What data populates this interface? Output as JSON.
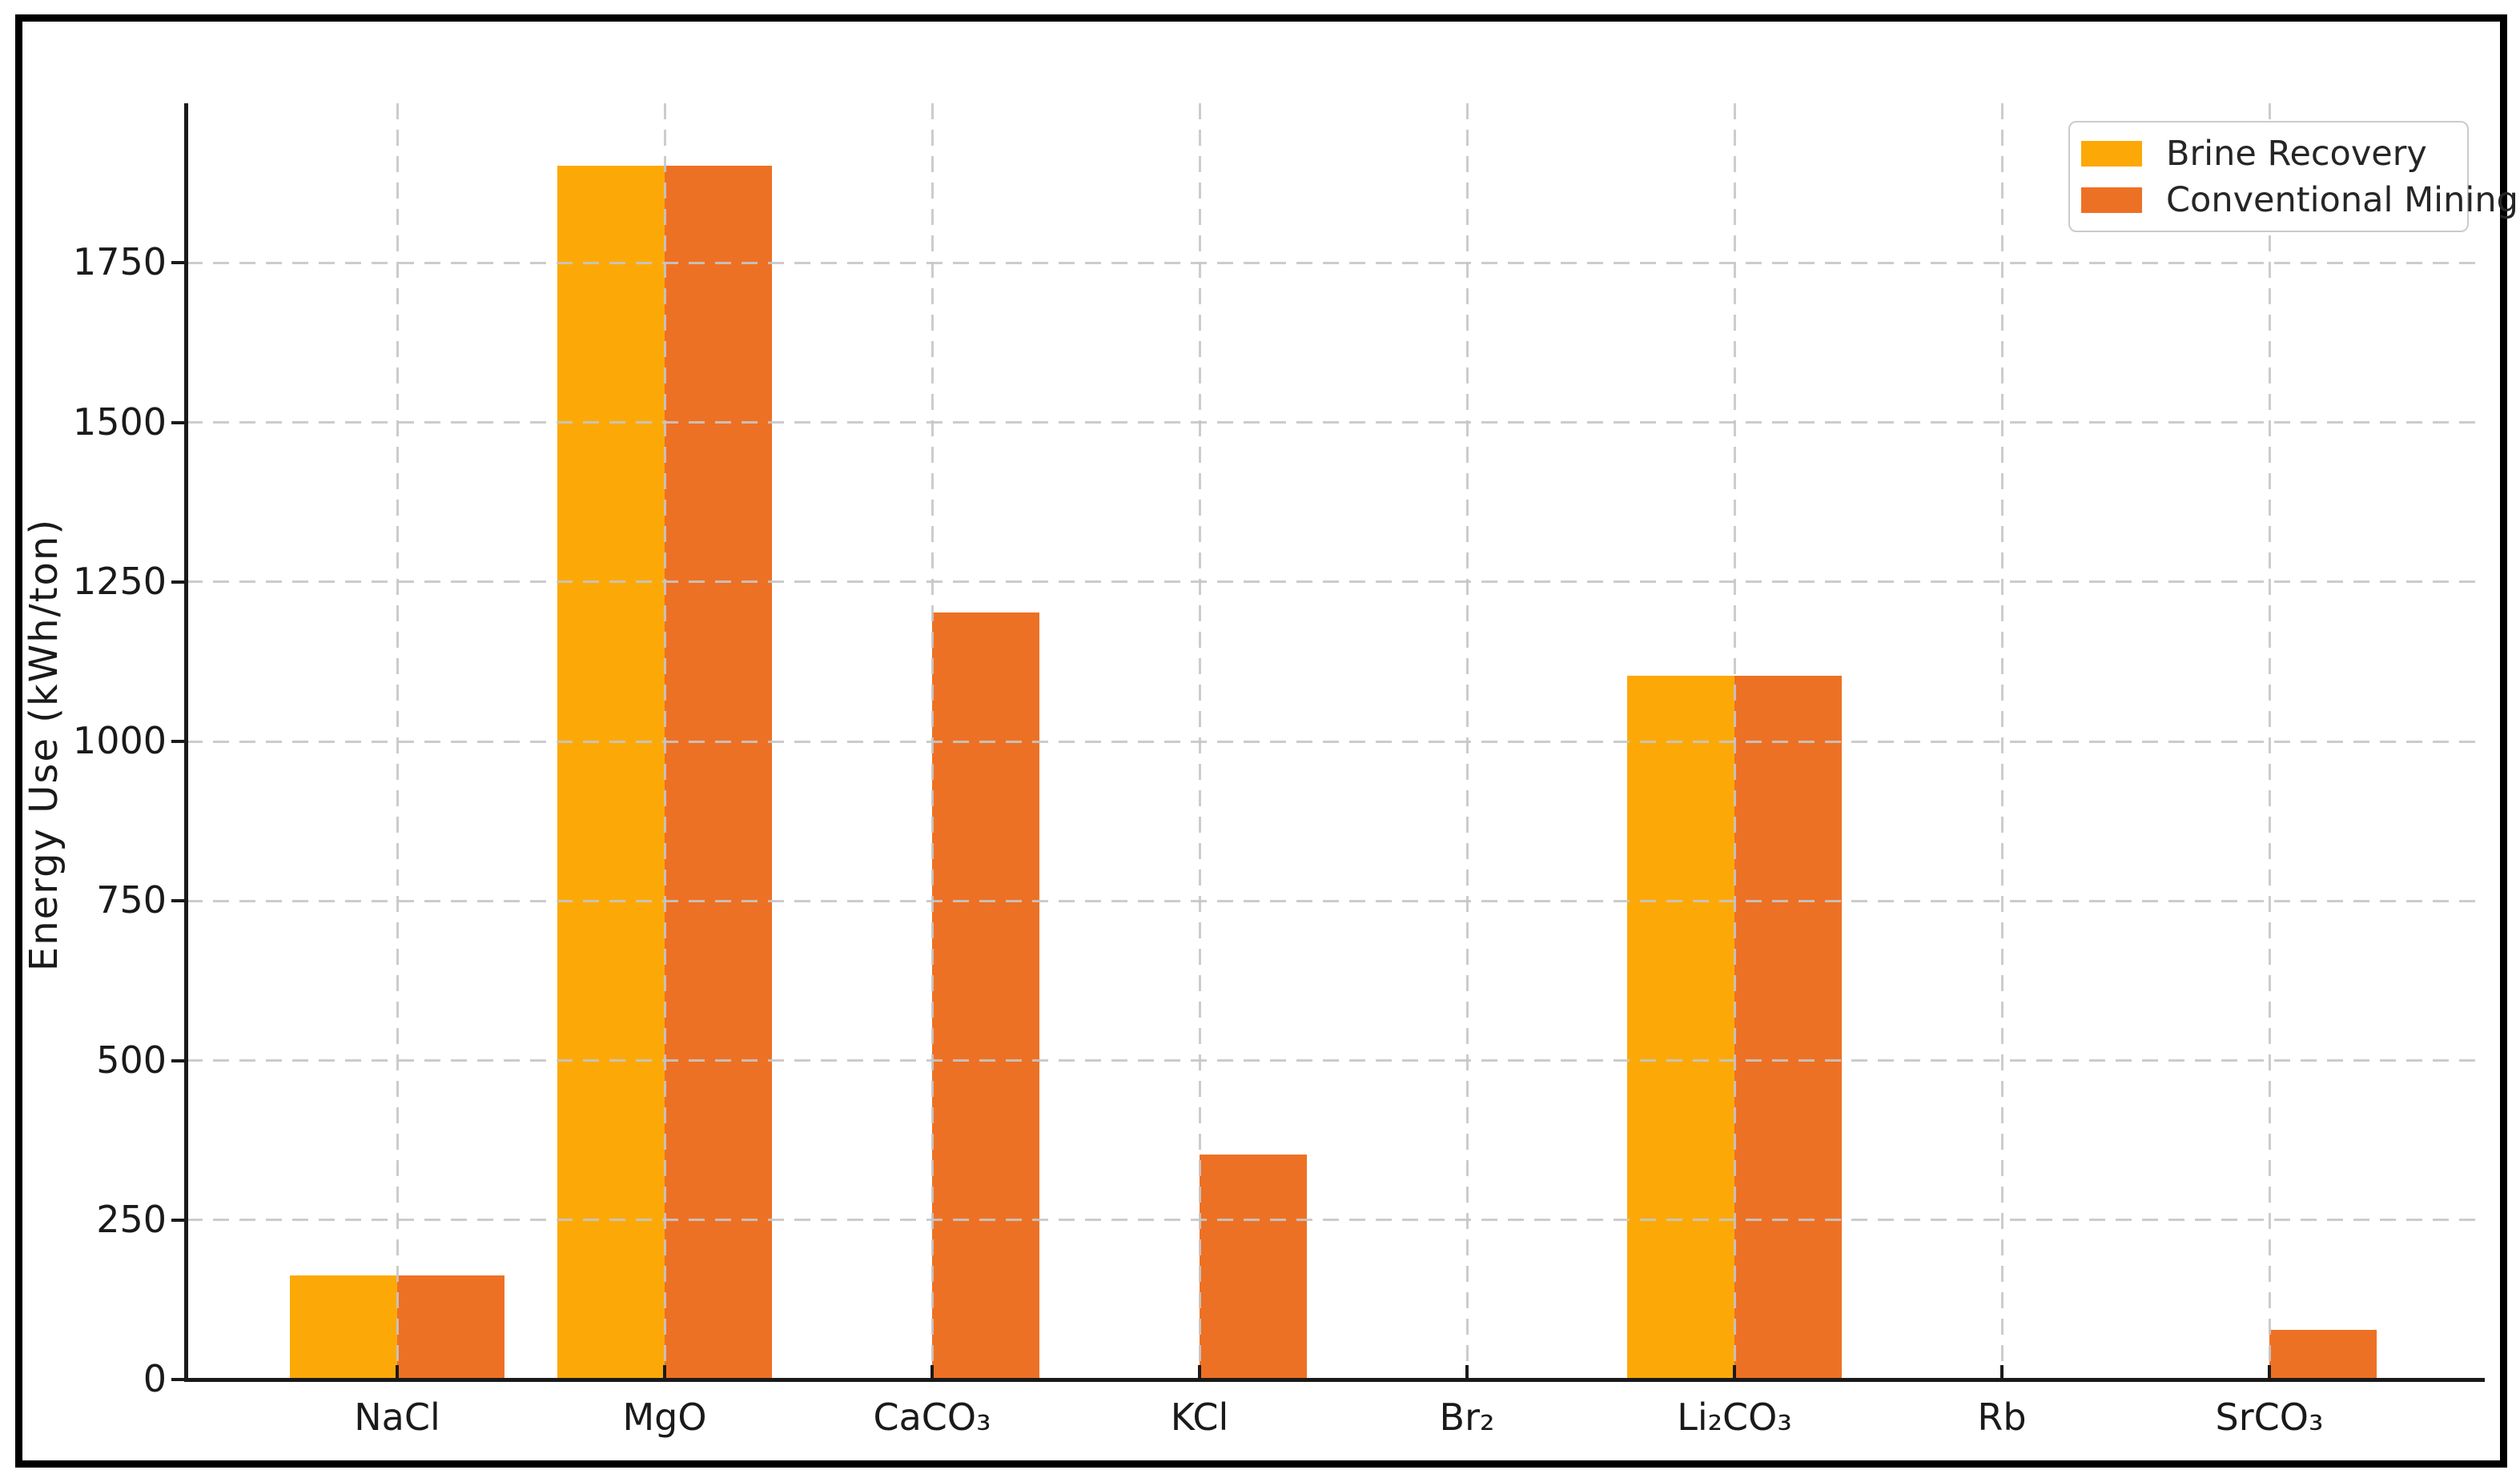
{
  "chart_data": {
    "type": "bar",
    "title": "",
    "ylabel": "Energy Use (kWh/ton)",
    "xlabel": "",
    "categories": [
      "NaCl",
      "MgO",
      "CaCO₃",
      "KCl",
      "Br₂",
      "Li₂CO₃",
      "Rb",
      "SrCO₃"
    ],
    "series": [
      {
        "name": "Brine Recovery",
        "color": "#FCA908",
        "values": [
          160,
          1900,
          0,
          0,
          0,
          1100,
          0,
          0
        ]
      },
      {
        "name": "Conventional Mining",
        "color": "#ED7124",
        "values": [
          160,
          1900,
          1200,
          350,
          0,
          1100,
          0,
          75
        ]
      }
    ],
    "yticks": [
      0,
      250,
      500,
      750,
      1000,
      1250,
      1500,
      1750
    ],
    "ylim": [
      0,
      2000
    ],
    "grid": true,
    "grid_style": "dashed",
    "grid_above_bars": true,
    "legend_position": "upper right",
    "colors": {
      "axis": "#1a1a1a",
      "gridline": "#c6c6c6",
      "background": "#ffffff",
      "frame": "#000000"
    }
  }
}
